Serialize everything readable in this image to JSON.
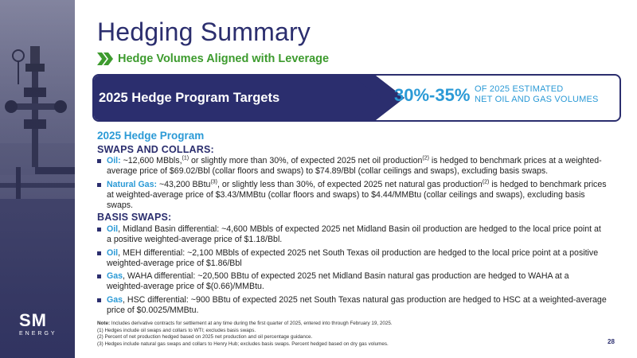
{
  "title": "Hedging Summary",
  "subtitle": "Hedge Volumes Aligned with Leverage",
  "banner": {
    "label": "2025 Hedge Program Targets",
    "percent": "30%-35%",
    "desc_line1": "OF 2025 ESTIMATED",
    "desc_line2": "NET OIL AND GAS VOLUMES"
  },
  "program_heading": "2025 Hedge Program",
  "swaps": {
    "heading": "SWAPS AND COLLARS:",
    "items": [
      {
        "keyword": "Oil:",
        "text_a": " ~12,600 MBbls,",
        "sup_a": "(1)",
        "text_b": " or slightly more than 30%, of expected 2025 net oil production",
        "sup_b": "(2)",
        "text_c": " is hedged to benchmark prices at a weighted-average price of $69.02/Bbl (collar floors and swaps) to $74.89/Bbl  (collar ceilings and swaps), excluding basis swaps."
      },
      {
        "keyword": "Natural Gas:",
        "text_a": " ~43,200 BBtu",
        "sup_a": "(3)",
        "text_b": ", or slightly less than 30%, of expected 2025 net natural gas production",
        "sup_b": "(2)",
        "text_c": " is hedged to benchmark prices at weighted-average price of $3.43/MMBtu (collar floors and swaps) to $4.44/MMBtu (collar ceilings and swaps), excluding basis swaps."
      }
    ]
  },
  "basis": {
    "heading": "BASIS SWAPS:",
    "items": [
      {
        "keyword": "Oil",
        "text": ", Midland Basin differential: ~4,600 MBbls of expected 2025 net Midland Basin oil production are hedged to the local price point at a positive weighted-average price of $1.18/Bbl."
      },
      {
        "keyword": "Oil",
        "text": ", MEH differential: ~2,100 MBbls of expected 2025 net South Texas oil production are hedged to the local price point at a positive weighted-average price of $1.86/Bbl"
      },
      {
        "keyword": "Gas",
        "text": ", WAHA differential: ~20,500 BBtu of expected 2025 net Midland Basin natural gas production are hedged to WAHA at a weighted-average price of $(0.66)/MMBtu."
      },
      {
        "keyword": "Gas",
        "text": ", HSC differential: ~900 BBtu of expected 2025 net South Texas natural gas production are hedged to HSC at a weighted-average price of $0.0025/MMBtu."
      }
    ]
  },
  "notes": {
    "note_label": "Note:",
    "note_text": " Includes derivative contracts for settlement at any time during the first quarter of 2025, entered into through February 19, 2025.",
    "lines": [
      "(1)    Hedges include oil swaps and collars to WTI; excludes basis swaps.",
      "(2)    Percent of net production hedged based on 2025 net production and oil percentage guidance.",
      "(3)    Hedges include natural gas swaps and collars to Henry Hub; excludes basis swaps. Percent hedged based on dry gas volumes."
    ]
  },
  "logo": {
    "mark": "SM",
    "word": "ENERGY"
  },
  "page_number": "28",
  "colors": {
    "navy": "#2b2e6e",
    "blue": "#2b9ad6",
    "green": "#3d9b2e"
  },
  "icons": {
    "subtitle_bullet": "double-chevron-right-icon"
  }
}
